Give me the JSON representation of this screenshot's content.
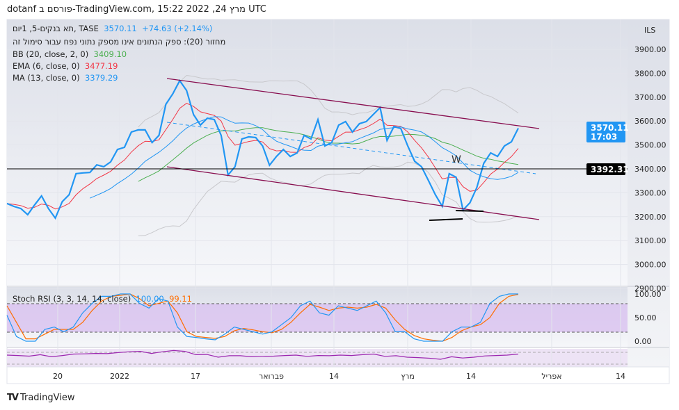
{
  "header": {
    "title": "dotanf פורסם ב-TradingView.com, 15:22 2022 ,24 מרץ UTC"
  },
  "legend": {
    "symbol": "תא בנקים-5, 1יום, TASE",
    "price": "3570.11",
    "change": "+74.63 (+2.14%)",
    "volume_note": "מחזור (20): ספק הנתונים אינו מספק נתוני נפח עבור סימול זה",
    "bb_label": "BB (20, close, 2, 0)",
    "bb_value": "3409.10",
    "ema_label": "EMA (6, close, 0)",
    "ema_value": "3477.19",
    "ma_label": "MA (13, close, 0)",
    "ma_value": "3379.29",
    "stoch_label": "Stoch RSI (3, 3, 14, 14, close)",
    "stoch_k": "100.00",
    "stoch_d": "99.11"
  },
  "price_axis": {
    "currency": "ILS",
    "ticks": [
      "3900.00",
      "3800.00",
      "3700.00",
      "3600.00",
      "3500.00",
      "3400.00",
      "3300.00",
      "3200.00",
      "3100.00",
      "3000.00",
      "2900.00"
    ],
    "last_price": "3570.11",
    "countdown": "17:03",
    "line_price": "3392.31"
  },
  "stoch_axis": {
    "ticks": [
      "100.00",
      "50.00",
      "0.00"
    ]
  },
  "time_axis": {
    "ticks": [
      "20",
      "2022",
      "17",
      "פברואר",
      "14",
      "מרץ",
      "14",
      "אפריל",
      "14"
    ]
  },
  "annotation": "W",
  "colors": {
    "price": "#2196f3",
    "ema": "#f23645",
    "ma": "#2196f3",
    "bb_basis": "#4caf50",
    "channel": "#880e4f",
    "stoch_k": "#2196f3",
    "stoch_d": "#ff6d00"
  },
  "footer": {
    "brand": "TradingView"
  },
  "chart_data": {
    "type": "line",
    "ylim": [
      2900,
      4000
    ],
    "close": [
      3255,
      3243,
      3234,
      3208,
      3249,
      3287,
      3234,
      3194,
      3263,
      3292,
      3380,
      3383,
      3385,
      3417,
      3409,
      3429,
      3481,
      3490,
      3554,
      3563,
      3563,
      3510,
      3540,
      3670,
      3714,
      3769,
      3728,
      3627,
      3583,
      3612,
      3606,
      3540,
      3374,
      3409,
      3525,
      3534,
      3531,
      3496,
      3415,
      3452,
      3481,
      3452,
      3467,
      3540,
      3525,
      3606,
      3496,
      3510,
      3583,
      3598,
      3554,
      3589,
      3598,
      3627,
      3656,
      3519,
      3577,
      3569,
      3496,
      3432,
      3409,
      3351,
      3292,
      3243,
      3380,
      3365,
      3228,
      3258,
      3322,
      3423,
      3467,
      3452,
      3496,
      3513,
      3570
    ],
    "stoch_k": [
      55,
      10,
      0,
      0,
      25,
      30,
      20,
      30,
      60,
      80,
      95,
      95,
      100,
      100,
      80,
      70,
      90,
      85,
      30,
      10,
      8,
      5,
      3,
      15,
      30,
      25,
      20,
      15,
      20,
      35,
      50,
      75,
      85,
      60,
      55,
      75,
      70,
      65,
      75,
      85,
      60,
      20,
      20,
      5,
      0,
      0,
      0,
      20,
      30,
      30,
      40,
      80,
      95,
      100,
      100
    ],
    "stoch_d": [
      75,
      40,
      5,
      5,
      15,
      25,
      25,
      25,
      40,
      65,
      85,
      95,
      97,
      100,
      90,
      75,
      80,
      85,
      60,
      20,
      10,
      8,
      6,
      10,
      22,
      27,
      24,
      20,
      18,
      25,
      40,
      60,
      78,
      72,
      65,
      70,
      72,
      70,
      72,
      78,
      70,
      45,
      25,
      12,
      5,
      2,
      0,
      8,
      22,
      30,
      35,
      50,
      80,
      95,
      99
    ],
    "oscillator": [
      50,
      48,
      45,
      52,
      42,
      48,
      55,
      56,
      58,
      57,
      62,
      66,
      68,
      58,
      66,
      72,
      68,
      52,
      53,
      40,
      47,
      47,
      42,
      44,
      45,
      48,
      50,
      44,
      48,
      47,
      50,
      48,
      52,
      55,
      44,
      47,
      40,
      38,
      35,
      30,
      42,
      36,
      40,
      46,
      48,
      50,
      55
    ]
  }
}
